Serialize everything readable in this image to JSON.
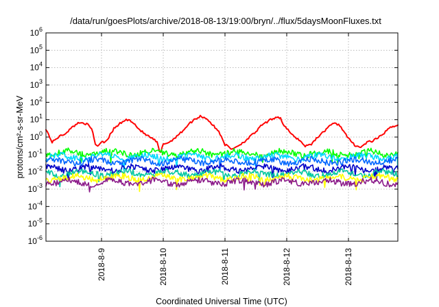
{
  "chart_data": {
    "type": "line",
    "title": "/data/run/goesPlots/archive/2018-08-13/19:00/bryn/../flux/5daysMoonFluxes.txt",
    "xlabel": "Coordinated Universal Time (UTC)",
    "ylabel": "protons/cm²-s-sr-MeV",
    "yscale": "log",
    "ylim_exponents": [
      -6,
      6
    ],
    "y_ticks": [
      {
        "base": "10",
        "exp": "-6"
      },
      {
        "base": "10",
        "exp": "-5"
      },
      {
        "base": "10",
        "exp": "-4"
      },
      {
        "base": "10",
        "exp": "-3"
      },
      {
        "base": "10",
        "exp": "-2"
      },
      {
        "base": "10",
        "exp": "-1"
      },
      {
        "base": "10",
        "exp": "0"
      },
      {
        "base": "10",
        "exp": "1"
      },
      {
        "base": "10",
        "exp": "2"
      },
      {
        "base": "10",
        "exp": "3"
      },
      {
        "base": "10",
        "exp": "4"
      },
      {
        "base": "10",
        "exp": "5"
      },
      {
        "base": "10",
        "exp": "6"
      }
    ],
    "x_ticks": [
      "2018-8-9",
      "2018-8-10",
      "2018-8-11",
      "2018-8-12",
      "2018-8-13"
    ],
    "xlim_days": [
      8.1,
      13.8
    ],
    "grid": true,
    "series": [
      {
        "color": "#ff0000",
        "days": [
          8.1,
          8.15,
          8.2,
          8.3,
          8.4,
          8.5,
          8.6,
          8.7,
          8.78,
          8.85,
          8.9,
          8.95,
          9.0,
          9.05,
          9.1,
          9.2,
          9.3,
          9.4,
          9.5,
          9.6,
          9.7,
          9.78,
          9.85,
          9.9,
          9.95,
          10.0,
          10.05,
          10.1,
          10.2,
          10.3,
          10.4,
          10.5,
          10.6,
          10.7,
          10.8,
          10.9,
          10.95,
          11.0,
          11.05,
          11.1,
          11.2,
          11.3,
          11.4,
          11.5,
          11.6,
          11.7,
          11.78,
          11.85,
          11.9,
          11.95,
          12.0,
          12.1,
          12.2,
          12.3,
          12.4,
          12.5,
          12.6,
          12.7,
          12.8,
          12.85,
          12.9,
          12.95,
          13.0,
          13.1,
          13.2,
          13.3,
          13.4,
          13.5,
          13.6,
          13.7,
          13.8
        ],
        "values": [
          3.0,
          1.2,
          0.5,
          1.0,
          1.5,
          3.0,
          6.0,
          7.0,
          5.0,
          2.5,
          0.4,
          0.3,
          0.6,
          0.5,
          0.8,
          3.0,
          6.0,
          10.0,
          8.0,
          3.0,
          1.5,
          1.0,
          0.7,
          0.5,
          0.1,
          0.4,
          0.45,
          0.5,
          1.0,
          2.0,
          5.0,
          10.0,
          16.0,
          12.0,
          5.0,
          2.0,
          1.0,
          0.35,
          0.3,
          0.2,
          0.3,
          0.5,
          1.0,
          2.0,
          5.0,
          8.0,
          12.0,
          15.0,
          12.0,
          5.0,
          3.0,
          1.2,
          0.7,
          0.3,
          0.4,
          1.0,
          2.0,
          5.0,
          6.0,
          5.0,
          3.0,
          1.5,
          0.8,
          0.35,
          0.25,
          0.5,
          0.6,
          1.0,
          2.0,
          4.0,
          5.0
        ]
      },
      {
        "color": "#00ff00",
        "level": 0.12
      },
      {
        "color": "#00d8ff",
        "level": 0.07
      },
      {
        "color": "#0066ff",
        "level": 0.04
      },
      {
        "color": "#0000c8",
        "level": 0.015
      },
      {
        "color": "#00c8a0",
        "level": 0.008
      },
      {
        "color": "#ffff00",
        "level": 0.0045
      },
      {
        "color": "#8b1a89",
        "level": 0.0025
      }
    ]
  }
}
